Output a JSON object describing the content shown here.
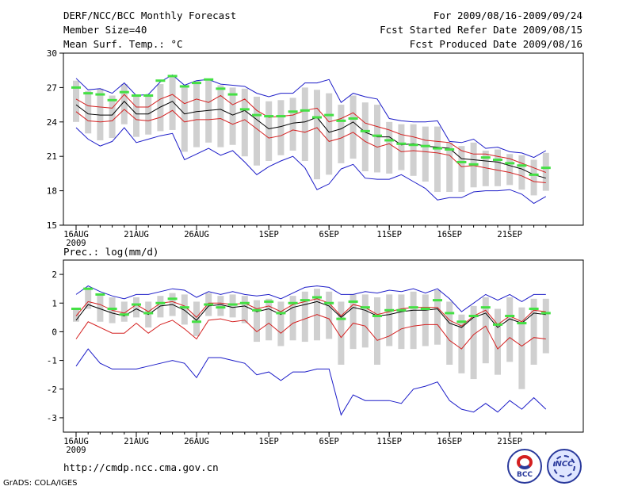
{
  "header": {
    "title": "DERF/NCC/BCC Monthly Forecast",
    "member_size": "Member Size=40",
    "variable": "Mean Surf. Temp.: °C",
    "period": "For 2009/08/16-2009/09/24",
    "start_date": "Fcst Started Refer Date 2009/08/15",
    "produced": "Fcst Produced Date 2009/08/16"
  },
  "footer": {
    "url": "http://cmdp.ncc.cma.gov.cn",
    "grads": "GrADS: COLA/IGES",
    "logo_left": "BCC",
    "logo_right": "NCC"
  },
  "colors": {
    "mean": "#000000",
    "std_band": "#d42020",
    "envelope": "#1c1cc8",
    "box": "#d0d0d0",
    "median": "#44e044"
  },
  "chart_data": [
    {
      "type": "line",
      "title": "Mean Surf. Temp.: °C",
      "xlabel": "",
      "ylabel": "",
      "x_tick_labels": [
        "16AUG",
        "21AUG",
        "26AUG",
        "1SEP",
        "6SEP",
        "11SEP",
        "16SEP",
        "21SEP"
      ],
      "x_tick_days": [
        0,
        5,
        10,
        16,
        21,
        26,
        31,
        36
      ],
      "year_label": "2009",
      "ylim": [
        15,
        30
      ],
      "yticks": [
        15,
        18,
        21,
        24,
        27,
        30
      ],
      "x_days": [
        0,
        1,
        2,
        3,
        4,
        5,
        6,
        7,
        8,
        9,
        10,
        11,
        12,
        13,
        14,
        15,
        16,
        17,
        18,
        19,
        20,
        21,
        22,
        23,
        24,
        25,
        26,
        27,
        28,
        29,
        30,
        31,
        32,
        33,
        34,
        35,
        36,
        37,
        38,
        39
      ],
      "series": [
        {
          "name": "ensemble mean",
          "role": "mean",
          "values": [
            25.5,
            24.7,
            24.6,
            24.6,
            25.8,
            24.7,
            24.7,
            25.3,
            25.8,
            24.7,
            24.9,
            25.0,
            25.1,
            24.6,
            25.0,
            24.2,
            23.4,
            23.6,
            23.9,
            24.0,
            24.4,
            23.1,
            23.4,
            24.0,
            23.1,
            22.7,
            22.7,
            22.0,
            22.1,
            21.9,
            21.8,
            21.7,
            20.8,
            20.7,
            20.6,
            20.5,
            20.2,
            19.9,
            19.4,
            19.1
          ]
        },
        {
          "name": "mean + 1 std",
          "role": "std_upper",
          "values": [
            26.0,
            25.4,
            25.3,
            25.2,
            26.4,
            25.3,
            25.3,
            26.0,
            26.4,
            25.6,
            26.0,
            25.7,
            26.3,
            25.5,
            26.0,
            25.0,
            24.4,
            24.5,
            24.6,
            25.0,
            25.2,
            24.0,
            24.3,
            24.8,
            23.9,
            23.6,
            23.3,
            22.9,
            22.7,
            22.4,
            22.3,
            22.2,
            21.5,
            21.2,
            21.2,
            21.0,
            20.8,
            20.4,
            20.0,
            19.6
          ]
        },
        {
          "name": "mean - 1 std",
          "role": "std_lower",
          "values": [
            24.9,
            24.1,
            24.0,
            24.1,
            25.1,
            24.2,
            24.1,
            24.4,
            25.0,
            24.0,
            24.2,
            24.2,
            24.3,
            23.8,
            24.2,
            23.4,
            22.6,
            22.8,
            23.3,
            23.1,
            23.5,
            22.3,
            22.6,
            23.1,
            22.3,
            21.8,
            22.1,
            21.4,
            21.5,
            21.4,
            21.3,
            21.1,
            20.1,
            20.2,
            20.0,
            19.8,
            19.6,
            19.3,
            18.8,
            18.7
          ]
        },
        {
          "name": "ensemble max",
          "role": "max",
          "values": [
            27.8,
            26.8,
            26.9,
            26.5,
            27.4,
            26.3,
            26.4,
            27.5,
            28.1,
            27.2,
            27.6,
            27.7,
            27.3,
            27.2,
            27.1,
            26.5,
            26.2,
            26.5,
            26.5,
            27.4,
            27.4,
            27.7,
            25.7,
            26.5,
            26.2,
            26.0,
            24.3,
            24.1,
            24.0,
            24.0,
            24.1,
            22.3,
            22.2,
            22.5,
            21.7,
            21.8,
            21.4,
            21.3,
            20.9,
            21.5
          ]
        },
        {
          "name": "ensemble min",
          "role": "min",
          "values": [
            23.5,
            22.5,
            21.9,
            22.3,
            23.5,
            22.2,
            22.5,
            22.8,
            23.0,
            20.7,
            21.2,
            21.7,
            21.1,
            21.5,
            20.5,
            19.4,
            20.1,
            20.6,
            21.0,
            20.0,
            18.1,
            18.6,
            19.9,
            20.3,
            19.1,
            19.0,
            19.0,
            19.4,
            18.8,
            18.2,
            17.2,
            17.4,
            17.4,
            17.9,
            18.0,
            18.0,
            18.1,
            17.7,
            16.9,
            17.5
          ]
        }
      ],
      "box_top": [
        27.6,
        26.7,
        26.9,
        26.3,
        27.3,
        26.2,
        26.4,
        27.3,
        28.0,
        27.0,
        27.6,
        27.6,
        27.2,
        27.0,
        26.9,
        26.2,
        25.8,
        25.9,
        26.1,
        27.0,
        26.8,
        26.5,
        25.5,
        26.3,
        25.7,
        25.5,
        24.0,
        23.8,
        23.8,
        23.6,
        23.6,
        22.2,
        21.9,
        22.2,
        21.5,
        21.6,
        21.2,
        21.1,
        20.7,
        21.3
      ],
      "box_bottom": [
        24.0,
        23.0,
        22.4,
        22.6,
        23.8,
        22.7,
        22.9,
        23.2,
        23.3,
        21.4,
        21.8,
        22.2,
        21.8,
        22.0,
        21.0,
        20.2,
        20.6,
        21.1,
        21.5,
        20.6,
        19.0,
        19.4,
        20.4,
        20.8,
        19.7,
        19.6,
        19.5,
        19.8,
        19.3,
        18.8,
        17.9,
        17.9,
        17.9,
        18.3,
        18.4,
        18.4,
        18.5,
        18.1,
        17.6,
        18.0
      ],
      "medians": [
        27.0,
        26.5,
        26.4,
        25.9,
        26.6,
        26.3,
        26.3,
        27.6,
        28.0,
        27.1,
        27.4,
        27.7,
        26.9,
        26.4,
        25.1,
        24.6,
        24.5,
        24.5,
        24.9,
        25.0,
        24.4,
        24.6,
        24.1,
        24.3,
        23.2,
        22.8,
        22.4,
        22.1,
        22.0,
        21.9,
        21.7,
        21.6,
        20.5,
        20.3,
        20.9,
        20.7,
        20.4,
        20.2,
        19.4,
        20.0
      ]
    },
    {
      "type": "line",
      "title": "Prec.: log(mm/d)",
      "xlabel": "",
      "ylabel": "",
      "x_tick_labels": [
        "16AUG",
        "21AUG",
        "26AUG",
        "1SEP",
        "6SEP",
        "11SEP",
        "16SEP",
        "21SEP"
      ],
      "x_tick_days": [
        0,
        5,
        10,
        16,
        21,
        26,
        31,
        36
      ],
      "year_label": "2009",
      "ylim": [
        -3.5,
        2.5
      ],
      "yticks": [
        -3,
        -2,
        -1,
        0,
        1,
        2
      ],
      "x_days": [
        0,
        1,
        2,
        3,
        4,
        5,
        6,
        7,
        8,
        9,
        10,
        11,
        12,
        13,
        14,
        15,
        16,
        17,
        18,
        19,
        20,
        21,
        22,
        23,
        24,
        25,
        26,
        27,
        28,
        29,
        30,
        31,
        32,
        33,
        34,
        35,
        36,
        37,
        38,
        39
      ],
      "series": [
        {
          "name": "ensemble mean",
          "role": "mean",
          "values": [
            0.4,
            0.95,
            0.8,
            0.65,
            0.55,
            0.8,
            0.6,
            0.9,
            0.95,
            0.75,
            0.4,
            0.9,
            0.95,
            0.85,
            0.9,
            0.7,
            0.8,
            0.6,
            0.85,
            0.95,
            1.05,
            0.9,
            0.5,
            0.85,
            0.75,
            0.55,
            0.6,
            0.7,
            0.75,
            0.75,
            0.8,
            0.3,
            0.15,
            0.5,
            0.65,
            0.15,
            0.45,
            0.3,
            0.65,
            0.6
          ]
        },
        {
          "name": "mean + 1 std",
          "role": "std_upper",
          "values": [
            0.55,
            1.05,
            0.95,
            0.75,
            0.65,
            0.95,
            0.7,
            1.0,
            1.05,
            0.9,
            0.5,
            1.0,
            1.0,
            0.95,
            1.0,
            0.8,
            0.9,
            0.7,
            0.95,
            1.05,
            1.15,
            1.0,
            0.55,
            0.95,
            0.85,
            0.6,
            0.7,
            0.8,
            0.85,
            0.85,
            0.85,
            0.4,
            0.2,
            0.55,
            0.75,
            0.25,
            0.55,
            0.35,
            0.75,
            0.7
          ]
        },
        {
          "name": "mean - 1 std",
          "role": "std_lower",
          "values": [
            -0.25,
            0.35,
            0.15,
            -0.05,
            -0.05,
            0.3,
            -0.05,
            0.25,
            0.4,
            0.1,
            -0.25,
            0.4,
            0.45,
            0.35,
            0.4,
            0.0,
            0.3,
            -0.05,
            0.3,
            0.45,
            0.6,
            0.45,
            -0.2,
            0.3,
            0.2,
            -0.3,
            -0.15,
            0.1,
            0.2,
            0.25,
            0.25,
            -0.3,
            -0.6,
            -0.1,
            0.2,
            -0.6,
            -0.2,
            -0.5,
            -0.2,
            -0.25
          ]
        },
        {
          "name": "ensemble max",
          "role": "max",
          "values": [
            1.3,
            1.6,
            1.4,
            1.25,
            1.15,
            1.3,
            1.3,
            1.4,
            1.5,
            1.45,
            1.2,
            1.4,
            1.3,
            1.4,
            1.3,
            1.25,
            1.3,
            1.15,
            1.35,
            1.55,
            1.6,
            1.55,
            1.3,
            1.3,
            1.4,
            1.35,
            1.45,
            1.4,
            1.5,
            1.35,
            1.5,
            1.15,
            0.7,
            1.0,
            1.3,
            1.1,
            1.3,
            1.05,
            1.3,
            1.3
          ]
        },
        {
          "name": "ensemble min",
          "role": "min",
          "values": [
            -1.2,
            -0.6,
            -1.1,
            -1.3,
            -1.3,
            -1.3,
            -1.2,
            -1.1,
            -1.0,
            -1.1,
            -1.6,
            -0.9,
            -0.9,
            -1.0,
            -1.1,
            -1.5,
            -1.4,
            -1.7,
            -1.4,
            -1.4,
            -1.3,
            -1.3,
            -2.9,
            -2.2,
            -2.4,
            -2.4,
            -2.4,
            -2.5,
            -2.0,
            -1.9,
            -1.75,
            -2.4,
            -2.7,
            -2.8,
            -2.5,
            -2.8,
            -2.4,
            -2.7,
            -2.3,
            -2.7
          ]
        }
      ],
      "box_top": [
        0.8,
        1.5,
        1.3,
        1.2,
        1.05,
        1.2,
        1.05,
        1.25,
        1.35,
        1.3,
        1.05,
        1.35,
        1.25,
        1.3,
        1.25,
        1.1,
        1.15,
        1.05,
        1.25,
        1.4,
        1.5,
        1.4,
        1.05,
        1.3,
        1.3,
        1.2,
        1.3,
        1.3,
        1.4,
        1.3,
        1.45,
        1.05,
        0.6,
        0.9,
        1.2,
        0.8,
        1.2,
        0.85,
        1.15,
        1.15
      ],
      "box_bottom": [
        0.35,
        0.8,
        0.35,
        0.3,
        0.35,
        0.5,
        0.15,
        0.5,
        0.55,
        0.25,
        -0.15,
        0.55,
        0.55,
        0.5,
        0.3,
        -0.35,
        -0.3,
        -0.5,
        -0.3,
        -0.35,
        -0.3,
        -0.25,
        -1.15,
        -0.6,
        -0.55,
        -1.15,
        -0.5,
        -0.6,
        -0.6,
        -0.5,
        -0.45,
        -1.15,
        -1.45,
        -1.65,
        -1.1,
        -1.5,
        -1.05,
        -2.0,
        -1.15,
        -0.75
      ],
      "medians": [
        0.8,
        1.5,
        1.3,
        0.8,
        0.6,
        0.95,
        0.65,
        1.0,
        1.15,
        0.85,
        0.35,
        0.95,
        0.85,
        0.95,
        1.0,
        0.75,
        1.05,
        0.65,
        1.0,
        1.1,
        1.2,
        1.0,
        0.45,
        1.05,
        0.85,
        0.55,
        0.75,
        0.75,
        0.85,
        0.8,
        1.1,
        0.65,
        0.35,
        0.55,
        0.85,
        0.25,
        0.55,
        0.3,
        0.8,
        0.65
      ]
    }
  ]
}
